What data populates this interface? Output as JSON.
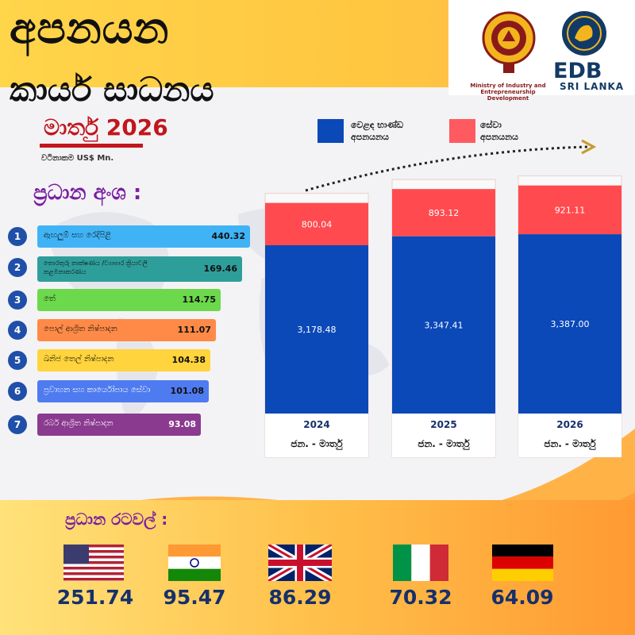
{
  "header": {
    "title": "අපනයන",
    "subtitle": "කාර්ය සාධනය",
    "period": "මාර්තු 2026",
    "unit": "වටිනාකම US$ Mn."
  },
  "logos": {
    "ministry_text": "Ministry of Industry and Entrepreneurship Development",
    "edb_name": "EDB",
    "edb_sub": "SRI LANKA"
  },
  "sectors": {
    "heading": "ප්‍රධාන අංශ :",
    "items": [
      {
        "num": "1",
        "label": "ඇඟලුම් සහ රෙදිපිළි",
        "value": "440.32",
        "color": "#3fb3f5"
      },
      {
        "num": "2",
        "label": "තොරතුරු තාක්ෂණය /ව්‍යාපාර ක්‍රියාවලි කළමනාකරණය",
        "value": "169.46",
        "color": "#2e9e9b"
      },
      {
        "num": "3",
        "label": "තේ",
        "value": "114.75",
        "color": "#6cd84c"
      },
      {
        "num": "4",
        "label": "පොල් ආශ්‍රිත නිෂ්පාදන",
        "value": "111.07",
        "color": "#ff8a47"
      },
      {
        "num": "5",
        "label": "ඛනිජ තෙල් නිෂ්පාදන",
        "value": "104.38",
        "color": "#ffd43c"
      },
      {
        "num": "6",
        "label": "ප්‍රවාහන සහ කාර්යෝපාය සේවා",
        "value": "101.08",
        "color": "#4f7bf0"
      },
      {
        "num": "7",
        "label": "රබර් ආශ්‍රිත නිෂ්පාදන",
        "value": "93.08",
        "color": "#8a3a8f"
      }
    ]
  },
  "legend": {
    "merch_label_1": "වෙළඳ භාණ්ඩ",
    "merch_label_2": "අපනයනය",
    "service_label_1": "සේවා",
    "service_label_2": "අපනයනය",
    "merch_color": "#0b48b8",
    "service_color": "#ff4b4f"
  },
  "chart_data": {
    "type": "bar",
    "stacked": true,
    "categories": [
      "2024",
      "2025",
      "2026"
    ],
    "category_sub": [
      "ජන. - මාර්තු",
      "ජන. - මාර්තු",
      "ජන. - මාර්තු"
    ],
    "series": [
      {
        "name": "වෙළඳ භාණ්ඩ අපනයනය",
        "values": [
          3178.48,
          3347.41,
          3387.0
        ],
        "labels": [
          "3,178.48",
          "3,347.41",
          "3,387.00"
        ]
      },
      {
        "name": "සේවා අපනයනය",
        "values": [
          800.04,
          893.12,
          921.11
        ],
        "labels": [
          "800.04",
          "893.12",
          "921.11"
        ]
      }
    ],
    "ylim": [
      0,
      4500
    ],
    "xlabel": "",
    "ylabel": ""
  },
  "countries": {
    "heading": "ප්‍රධාන රටවල් :",
    "items": [
      {
        "name": "USA",
        "value": "251.74"
      },
      {
        "name": "India",
        "value": "95.47"
      },
      {
        "name": "UK",
        "value": "86.29"
      },
      {
        "name": "Italy",
        "value": "70.32"
      },
      {
        "name": "Germany",
        "value": "64.09"
      }
    ]
  }
}
